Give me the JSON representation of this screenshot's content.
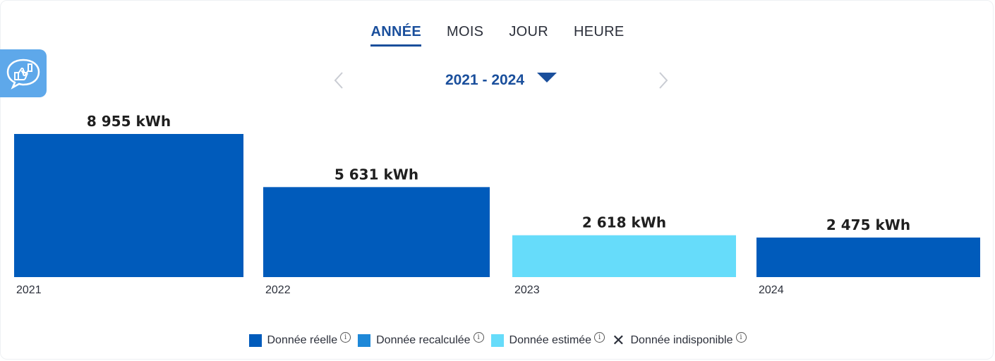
{
  "tabs": [
    {
      "label": "ANNÉE",
      "active": true
    },
    {
      "label": "MOIS",
      "active": false
    },
    {
      "label": "JOUR",
      "active": false
    },
    {
      "label": "HEURE",
      "active": false
    }
  ],
  "period": {
    "label": "2021 - 2024"
  },
  "colors": {
    "reelle": "#005bbb",
    "recalculee": "#1e88d8",
    "estimee": "#66dcfa",
    "accent": "#1a4f9c",
    "feedback": "#5ea8ea"
  },
  "legend": [
    {
      "label": "Donnée réelle",
      "kind": "reelle"
    },
    {
      "label": "Donnée recalculée",
      "kind": "recalculee"
    },
    {
      "label": "Donnée estimée",
      "kind": "estimee"
    },
    {
      "label": "Donnée indisponible",
      "kind": "indisponible"
    }
  ],
  "chart_data": {
    "type": "bar",
    "categories": [
      "2021",
      "2022",
      "2023",
      "2024"
    ],
    "values": [
      8955,
      5631,
      2618,
      2475
    ],
    "value_labels": [
      "8 955 kWh",
      "5 631 kWh",
      "2 618 kWh",
      "2 475 kWh"
    ],
    "kinds": [
      "reelle",
      "reelle",
      "estimee",
      "reelle"
    ],
    "unit": "kWh",
    "ylim": [
      0,
      8955
    ],
    "grid": false,
    "legend_position": "bottom"
  }
}
